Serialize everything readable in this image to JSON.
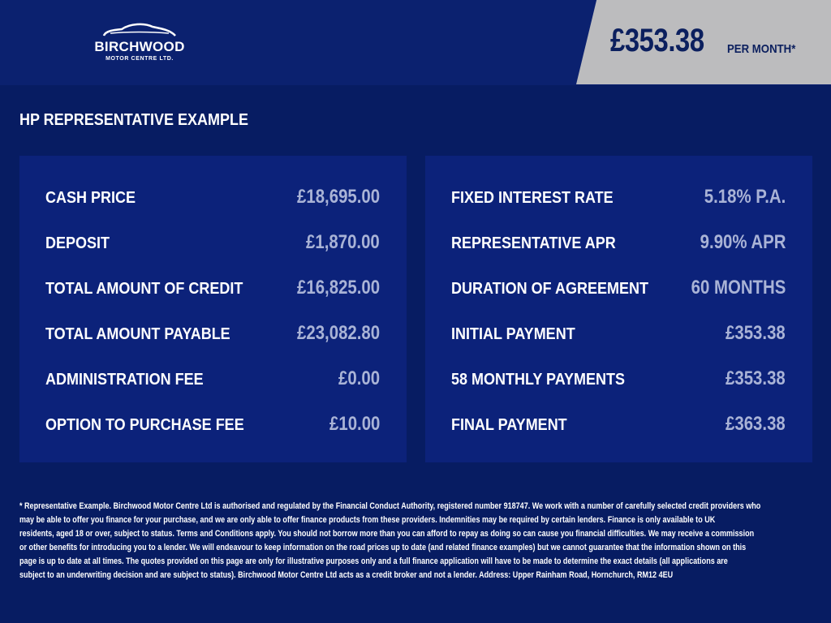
{
  "header": {
    "logo": {
      "name": "BIRCHWOOD",
      "sub": "MOTOR CENTRE LTD."
    },
    "price": "£353.38",
    "per_month": "PER MONTH*"
  },
  "title": "HP REPRESENTATIVE EXAMPLE",
  "colors": {
    "header_bg": "#0b216f",
    "body_bg": "#071c62",
    "panel_bg": "#0c227a",
    "price_box": "#bcbcbe",
    "value_text": "#a9b3d6"
  },
  "left_panel": [
    {
      "label": "CASH PRICE",
      "value": "£18,695.00"
    },
    {
      "label": "DEPOSIT",
      "value": "£1,870.00"
    },
    {
      "label": "TOTAL AMOUNT OF CREDIT",
      "value": "£16,825.00"
    },
    {
      "label": "TOTAL AMOUNT PAYABLE",
      "value": "£23,082.80"
    },
    {
      "label": "ADMINISTRATION FEE",
      "value": "£0.00"
    },
    {
      "label": "OPTION TO PURCHASE FEE",
      "value": "£10.00"
    }
  ],
  "right_panel": [
    {
      "label": "FIXED INTEREST RATE",
      "value": "5.18% P.A."
    },
    {
      "label": "REPRESENTATIVE APR",
      "value": "9.90% APR"
    },
    {
      "label": "DURATION OF AGREEMENT",
      "value": "60 MONTHS"
    },
    {
      "label": "INITIAL PAYMENT",
      "value": "£353.38"
    },
    {
      "label": "58 MONTHLY PAYMENTS",
      "value": "£353.38"
    },
    {
      "label": "FINAL PAYMENT",
      "value": "£363.38"
    }
  ],
  "disclaimer": [
    "* Representative Example. Birchwood Motor Centre Ltd is authorised and regulated by the Financial Conduct Authority, registered number 918747. We work with a number of carefully selected credit providers who",
    "may be able to offer you finance for your purchase, and we are only able to offer finance products from these providers. Indemnities may be required by certain lenders. Finance is only available to UK",
    "residents, aged 18 or over, subject to status. Terms and Conditions apply. You should not borrow more than you can afford to repay as doing so can cause you financial difficulties. We may receive a commission",
    "or other benefits for introducing you to a lender. We will endeavour to keep information on the road prices up to date (and related finance examples) but we cannot guarantee that the information shown on this",
    "page is up to date at all times. The quotes provided on this page are only for illustrative purposes only and a full finance application will have to be made to determine the exact details (all applications are",
    "subject to an underwriting decision and are subject to status). Birchwood Motor Centre Ltd acts as a credit broker and not a lender. Address: Upper Rainham Road, Hornchurch, RM12 4EU"
  ]
}
